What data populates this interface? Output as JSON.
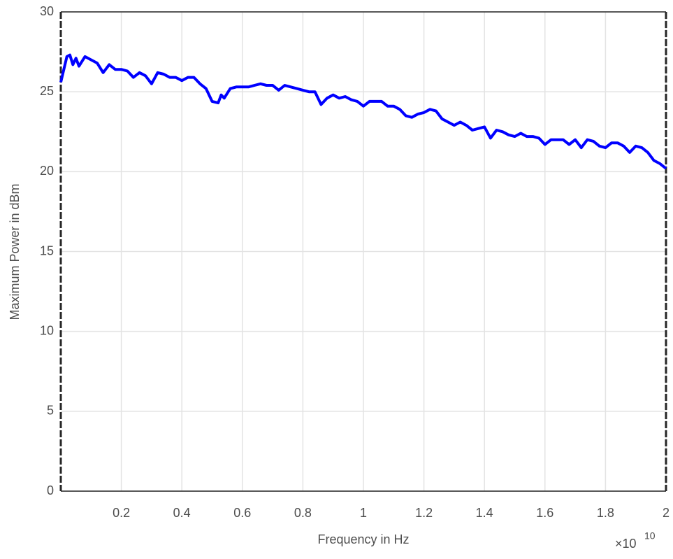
{
  "chart_data": {
    "type": "line",
    "xlabel": "Frequency in Hz",
    "ylabel": "Maximum Power in dBm",
    "x_multiplier": {
      "base": "×10",
      "exponent": "10"
    },
    "xlim": [
      0,
      2
    ],
    "ylim": [
      0,
      30
    ],
    "xticks": [
      0.2,
      0.4,
      0.6,
      0.8,
      1,
      1.2,
      1.4,
      1.6,
      1.8,
      2
    ],
    "yticks": [
      0,
      5,
      10,
      15,
      20,
      25,
      30
    ],
    "grid": true,
    "x": [
      0,
      0.02,
      0.03,
      0.04,
      0.05,
      0.06,
      0.08,
      0.1,
      0.12,
      0.14,
      0.16,
      0.18,
      0.2,
      0.22,
      0.24,
      0.26,
      0.28,
      0.3,
      0.32,
      0.34,
      0.36,
      0.38,
      0.4,
      0.42,
      0.44,
      0.46,
      0.48,
      0.5,
      0.52,
      0.53,
      0.54,
      0.56,
      0.58,
      0.6,
      0.62,
      0.64,
      0.66,
      0.68,
      0.7,
      0.72,
      0.74,
      0.76,
      0.78,
      0.8,
      0.82,
      0.84,
      0.86,
      0.88,
      0.9,
      0.92,
      0.94,
      0.96,
      0.98,
      1.0,
      1.02,
      1.04,
      1.06,
      1.08,
      1.1,
      1.12,
      1.14,
      1.16,
      1.18,
      1.2,
      1.22,
      1.24,
      1.26,
      1.28,
      1.3,
      1.32,
      1.34,
      1.36,
      1.38,
      1.4,
      1.42,
      1.44,
      1.46,
      1.48,
      1.5,
      1.52,
      1.54,
      1.56,
      1.58,
      1.6,
      1.62,
      1.64,
      1.66,
      1.68,
      1.7,
      1.72,
      1.74,
      1.76,
      1.78,
      1.8,
      1.82,
      1.84,
      1.86,
      1.88,
      1.9,
      1.92,
      1.94,
      1.96,
      1.98,
      2.0
    ],
    "series": [
      {
        "color": "#0000ff",
        "values": [
          25.6,
          27.2,
          27.3,
          26.7,
          27.1,
          26.6,
          27.2,
          27.0,
          26.8,
          26.2,
          26.7,
          26.4,
          26.4,
          26.3,
          25.9,
          26.2,
          26.0,
          25.5,
          26.2,
          26.1,
          25.9,
          25.9,
          25.7,
          25.9,
          25.9,
          25.5,
          25.2,
          24.4,
          24.3,
          24.8,
          24.6,
          25.2,
          25.3,
          25.3,
          25.3,
          25.4,
          25.5,
          25.4,
          25.4,
          25.1,
          25.4,
          25.3,
          25.2,
          25.1,
          25.0,
          25.0,
          24.2,
          24.6,
          24.8,
          24.6,
          24.7,
          24.5,
          24.4,
          24.1,
          24.4,
          24.4,
          24.4,
          24.1,
          24.1,
          23.9,
          23.5,
          23.4,
          23.6,
          23.7,
          23.9,
          23.8,
          23.3,
          23.1,
          22.9,
          23.1,
          22.9,
          22.6,
          22.7,
          22.8,
          22.1,
          22.6,
          22.5,
          22.3,
          22.2,
          22.4,
          22.2,
          22.2,
          22.1,
          21.7,
          22.0,
          22.0,
          22.0,
          21.7,
          22.0,
          21.5,
          22.0,
          21.9,
          21.6,
          21.5,
          21.8,
          21.8,
          21.6,
          21.2,
          21.6,
          21.5,
          21.2,
          20.7,
          20.5,
          20.2
        ]
      }
    ]
  }
}
